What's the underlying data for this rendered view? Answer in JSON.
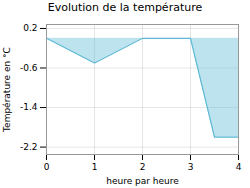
{
  "chart_data": {
    "type": "area",
    "title": "Evolution de la température",
    "xlabel": "heure par heure",
    "ylabel": "Température en °C",
    "x": [
      0,
      1,
      2,
      3,
      3.5,
      4
    ],
    "values": [
      0,
      -0.5,
      0,
      0,
      -2.0,
      -2.0
    ],
    "color": "#5bb8d4",
    "xlim": [
      0,
      4
    ],
    "ylim": [
      -2.35,
      0.28
    ],
    "xticks": [
      0,
      1,
      2,
      3,
      4
    ],
    "yticks": [
      0.2,
      -0.6,
      -1.4,
      -2.2
    ],
    "grid": true
  }
}
